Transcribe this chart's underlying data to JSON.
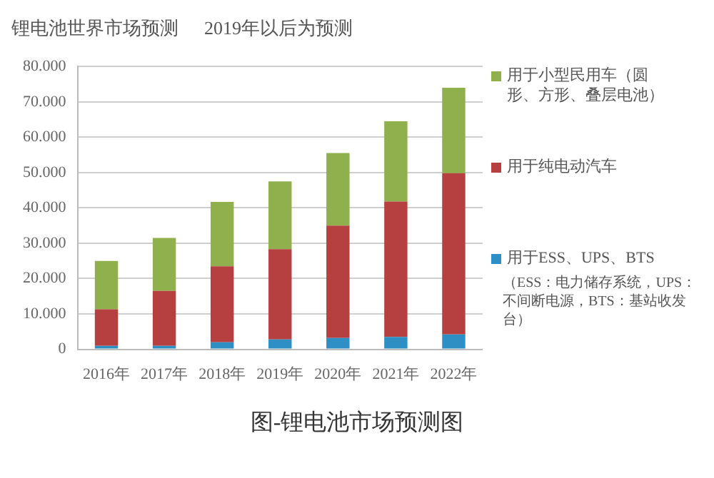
{
  "chart_data": {
    "type": "bar",
    "title": "锂电池世界市场预测",
    "subtitle": "2019年以后为预测",
    "categories": [
      "2016年",
      "2017年",
      "2018年",
      "2019年",
      "2020年",
      "2021年",
      "2022年"
    ],
    "stacked": true,
    "series": [
      {
        "name": "用于ESS、UPS、BTS",
        "color": "#2e8fc4",
        "values": [
          1000,
          1000,
          2000,
          2800,
          3200,
          3500,
          4200
        ]
      },
      {
        "name": "用于纯电动汽车",
        "color": "#b6403f",
        "values": [
          10300,
          15500,
          21500,
          25500,
          31800,
          38300,
          45600
        ]
      },
      {
        "name": "用于小型民用车（圆形、方形、叠层电池）",
        "color": "#8fb04c",
        "values": [
          13700,
          15000,
          18200,
          19200,
          20500,
          22700,
          24200
        ]
      }
    ],
    "ylim": [
      0,
      80000
    ],
    "yticks": [
      {
        "value": 0,
        "label": "0"
      },
      {
        "value": 10000,
        "label": "10.000"
      },
      {
        "value": 20000,
        "label": "20.000"
      },
      {
        "value": 30000,
        "label": "30.000"
      },
      {
        "value": 40000,
        "label": "40.000"
      },
      {
        "value": 50000,
        "label": "50.000"
      },
      {
        "value": 60000,
        "label": "60.000"
      },
      {
        "value": 70000,
        "label": "70.000"
      },
      {
        "value": 80000,
        "label": "80.000"
      }
    ],
    "grid": "y",
    "legend": "right",
    "annotations": [
      "（ESS：电力储存系统，UPS：不间断电源，BTS：基站收发台）",
      "图-锂电池市场预测图"
    ]
  }
}
